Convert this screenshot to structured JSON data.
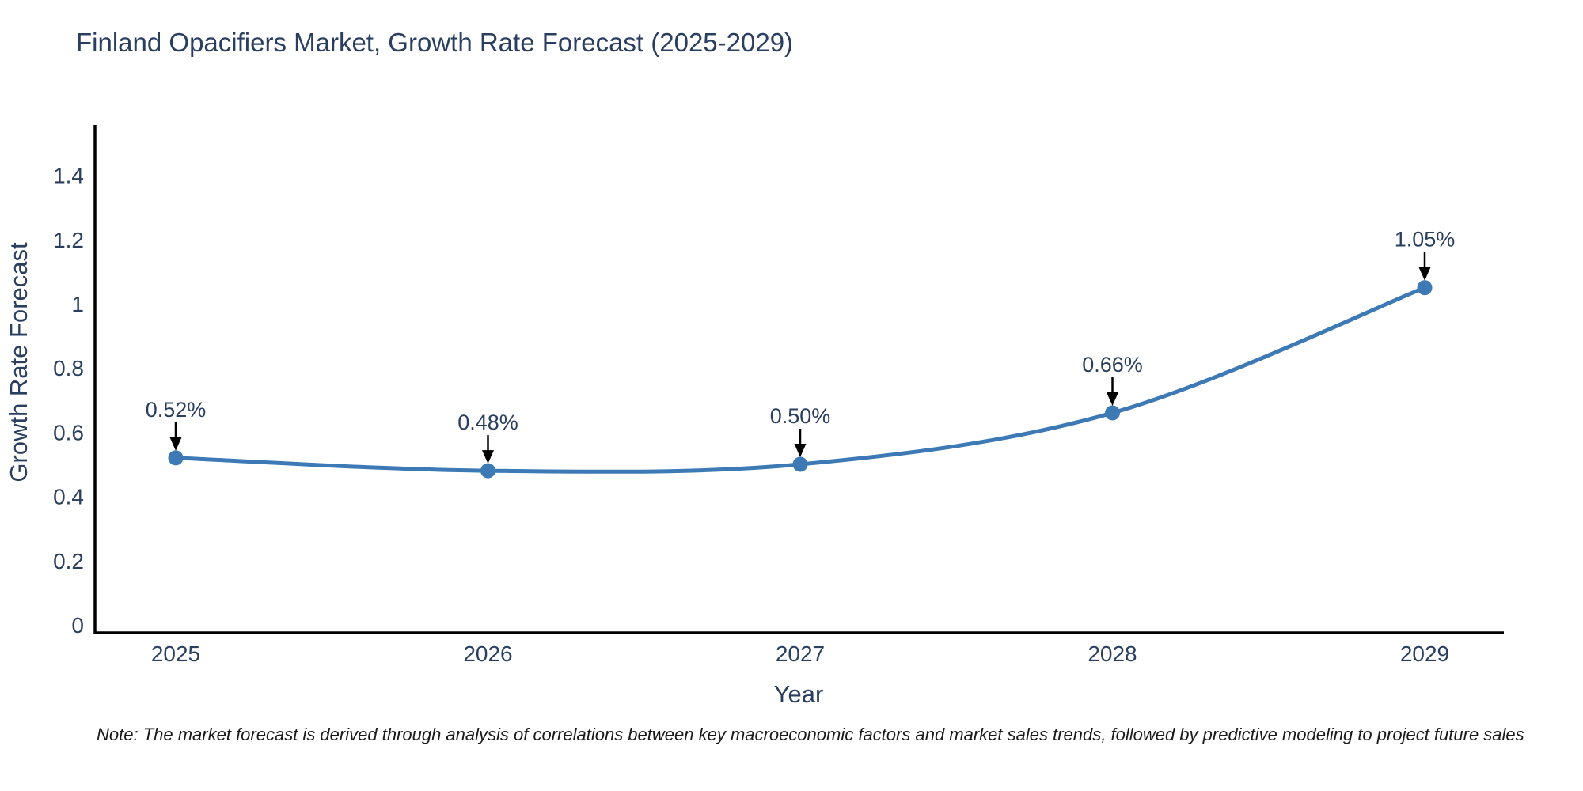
{
  "chart_data": {
    "type": "line",
    "title": "Finland Opacifiers Market, Growth Rate Forecast (2025-2029)",
    "xlabel": "Year",
    "ylabel": "Growth Rate Forecast",
    "x": [
      2025,
      2026,
      2027,
      2028,
      2029
    ],
    "series": [
      {
        "name": "Growth Rate Forecast",
        "values": [
          0.52,
          0.48,
          0.5,
          0.66,
          1.05
        ],
        "point_labels": [
          "0.52%",
          "0.48%",
          "0.50%",
          "0.66%",
          "1.05%"
        ]
      }
    ],
    "y_ticks": [
      0,
      0.2,
      0.4,
      0.6,
      0.8,
      1,
      1.2,
      1.4
    ],
    "y_tick_labels": [
      "0",
      "0.2",
      "0.4",
      "0.6",
      "0.8",
      "1",
      "1.2",
      "1.4"
    ],
    "ylim": [
      0,
      1.58
    ],
    "grid": false,
    "legend": false,
    "line_shape": "spline",
    "annotation_arrows": true,
    "colors": {
      "line": "#3c79b5",
      "marker": "#3c79b5",
      "axis": "#000000",
      "arrow": "#000000",
      "text": "#2a3f5f",
      "background": "#ffffff"
    }
  },
  "note": {
    "text": "Note: The market forecast is derived through analysis of correlations between key macroeconomic factors and market sales trends, followed by predictive modeling to project future sales"
  }
}
